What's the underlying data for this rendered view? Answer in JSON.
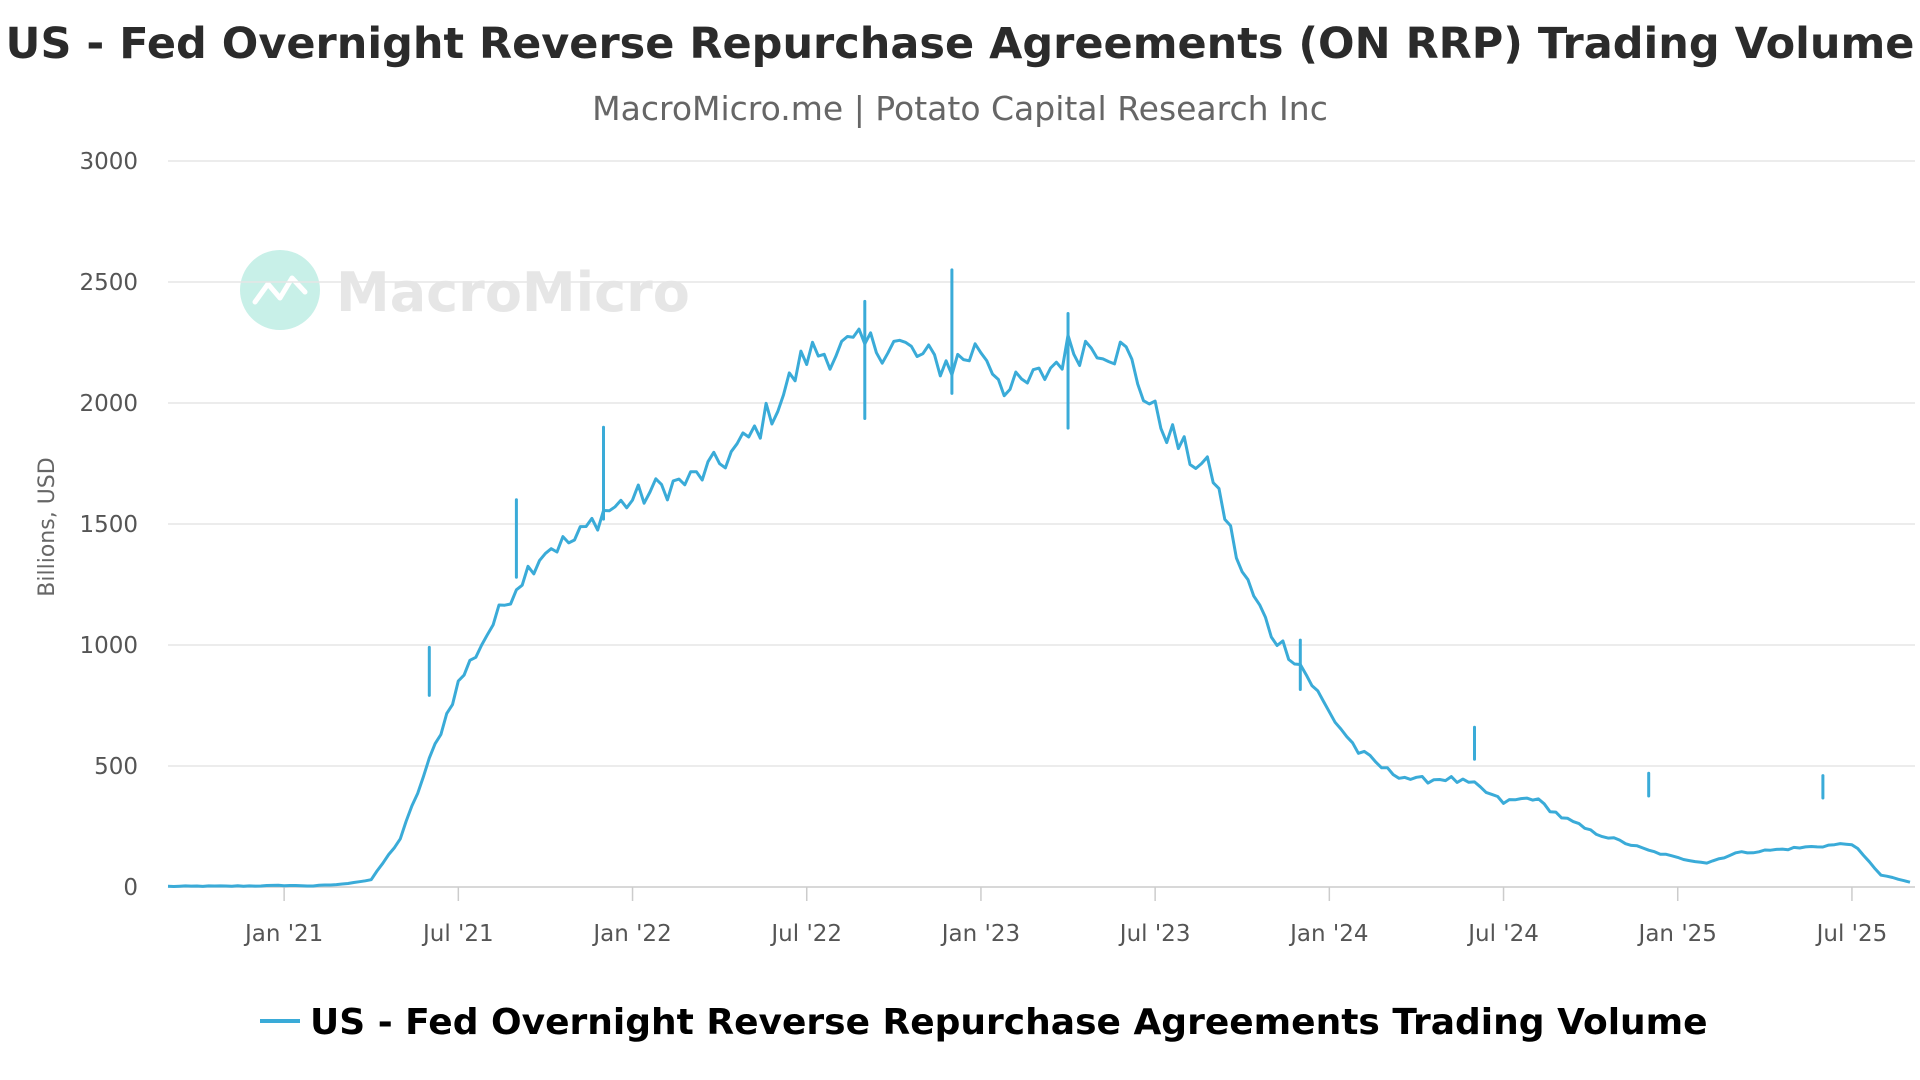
{
  "chart_data": {
    "type": "line",
    "title": "US - Fed Overnight Reverse Repurchase Agreements (ON RRP) Trading Volume",
    "subtitle": "MacroMicro.me | Potato Capital Research Inc",
    "watermark": "MacroMicro",
    "ylabel": "Billions, USD",
    "xlabel": "",
    "ylim": [
      0,
      3000
    ],
    "yticks": [
      0,
      500,
      1000,
      1500,
      2000,
      2500,
      3000
    ],
    "x_range": [
      "2020-09",
      "2025-09"
    ],
    "xticks": [
      "Jan '21",
      "Jul '21",
      "Jan '22",
      "Jul '22",
      "Jan '23",
      "Jul '23",
      "Jan '24",
      "Jul '24",
      "Jan '25",
      "Jul '25"
    ],
    "grid": true,
    "legend_position": "bottom-center",
    "colors": {
      "series": "#3aabd8",
      "grid": "#e6e6e6",
      "axis": "#cccccc",
      "watermark": "#e6e6e6",
      "watermark_icon": "#c8f0e8"
    },
    "series": [
      {
        "name": "US - Fed Overnight Reverse Repurchase Agreements Trading Volume",
        "x": [
          "2020-09",
          "2020-10",
          "2020-11",
          "2020-12",
          "2021-01",
          "2021-02",
          "2021-03",
          "2021-04",
          "2021-05",
          "2021-06",
          "2021-07",
          "2021-08",
          "2021-09",
          "2021-10",
          "2021-11",
          "2021-12",
          "2022-01",
          "2022-02",
          "2022-03",
          "2022-04",
          "2022-05",
          "2022-06",
          "2022-07",
          "2022-08",
          "2022-09",
          "2022-10",
          "2022-11",
          "2022-12",
          "2023-01",
          "2023-02",
          "2023-03",
          "2023-04",
          "2023-05",
          "2023-06",
          "2023-07",
          "2023-08",
          "2023-09",
          "2023-10",
          "2023-11",
          "2023-12",
          "2024-01",
          "2024-02",
          "2024-03",
          "2024-04",
          "2024-05",
          "2024-06",
          "2024-07",
          "2024-08",
          "2024-09",
          "2024-10",
          "2024-11",
          "2024-12",
          "2025-01",
          "2025-02",
          "2025-03",
          "2025-04",
          "2025-05",
          "2025-06",
          "2025-07",
          "2025-08",
          "2025-09"
        ],
        "values": [
          1,
          2,
          2,
          3,
          5,
          3,
          10,
          30,
          200,
          520,
          840,
          1050,
          1250,
          1400,
          1430,
          1550,
          1600,
          1650,
          1680,
          1750,
          1850,
          2000,
          2200,
          2220,
          2230,
          2250,
          2180,
          2160,
          2230,
          2050,
          2100,
          2220,
          2250,
          2200,
          1950,
          1800,
          1700,
          1300,
          1050,
          920,
          720,
          560,
          480,
          440,
          450,
          420,
          350,
          370,
          290,
          230,
          190,
          150,
          120,
          100,
          140,
          150,
          160,
          170,
          180,
          50,
          20
        ]
      }
    ],
    "annotations": [
      {
        "x": "2021-06",
        "value": 990,
        "label": ""
      },
      {
        "x": "2021-09",
        "value": 1600,
        "label": ""
      },
      {
        "x": "2021-12",
        "value": 1900,
        "label": ""
      },
      {
        "x": "2022-09",
        "value": 2420,
        "label": ""
      },
      {
        "x": "2022-12",
        "value": 2550,
        "label": ""
      },
      {
        "x": "2023-04",
        "value": 2370,
        "label": ""
      },
      {
        "x": "2023-12",
        "value": 1020,
        "label": ""
      },
      {
        "x": "2024-06",
        "value": 660,
        "label": ""
      },
      {
        "x": "2024-12",
        "value": 470,
        "label": ""
      },
      {
        "x": "2025-06",
        "value": 460,
        "label": ""
      }
    ]
  }
}
